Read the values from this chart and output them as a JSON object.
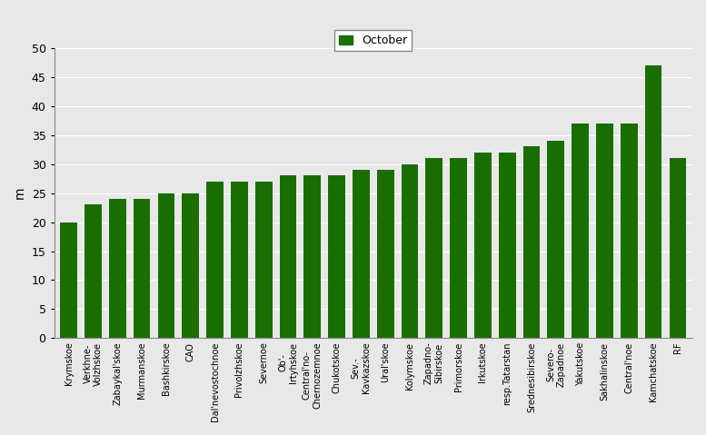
{
  "categories": [
    "Krymskoe",
    "Verkhne-\nVolzhskoe",
    "Zabaykal'skoe",
    "Murmanskoe",
    "Bashkirskoe",
    "CAO",
    "Dal'nevostochnoe",
    "Privolzhskoe",
    "Severnoe",
    "Ob'-\nIrtyhskoe",
    "Central'no-\nChernozemnoe",
    "Chukotskoe",
    "Sev.-\nKavkazskoe",
    "Ural'skoe",
    "Kolymskoe",
    "Zapadno-\nSibirskoe",
    "Primorskoe",
    "Irkutskoe",
    "resp.Tatarstan",
    "Srednesibirskoe",
    "Severo-\nZapadnoe",
    "Yakutskoe",
    "Sakhalinskoe",
    "Central'noe",
    "Kamchatskoe",
    "RF"
  ],
  "values": [
    20,
    23,
    24,
    24,
    25,
    25,
    27,
    27,
    27,
    28,
    28,
    28,
    29,
    29,
    30,
    31,
    31,
    32,
    32,
    33,
    34,
    37,
    37,
    37,
    47,
    31
  ],
  "bar_color": "#1a6e00",
  "ylabel": "m",
  "ylim": [
    0,
    50
  ],
  "yticks": [
    0,
    5,
    10,
    15,
    20,
    25,
    30,
    35,
    40,
    45,
    50
  ],
  "legend_label": "October",
  "legend_color": "#1a6e00",
  "bg_color": "#e8e8e8",
  "title": ""
}
